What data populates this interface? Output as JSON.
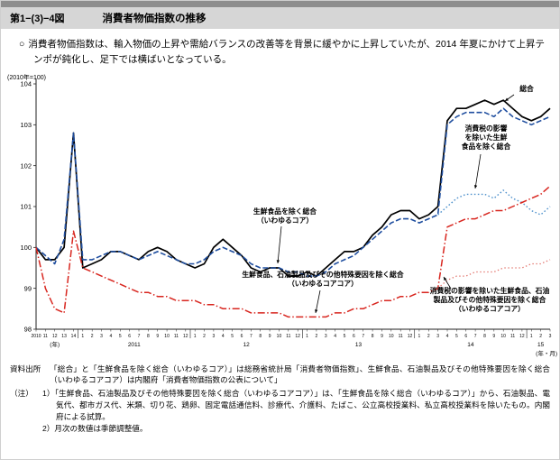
{
  "page": {
    "header": {
      "fig_number": "第1−(3)−4図",
      "title": "消費者物価指数の推移"
    },
    "lead": {
      "bullet": "○",
      "text": "消費者物価指数は、輸入物価の上昇や需給バランスの改善等を背景に緩やかに上昇していたが、2014 年夏にかけて上昇テンポが鈍化し、足下では横ばいとなっている。"
    },
    "footer": {
      "source_label": "資料出所",
      "source_text": "「総合」と「生鮮食品を除く総合（いわゆるコア）」は総務省統計局「消費者物価指数」、生鮮食品、石油製品及びその他特殊要因を除く総合（いわゆるコアコア）は内閣府「消費者物価指数の公表について」",
      "notes_label": "（注）",
      "notes": [
        "1）「生鮮食品、石油製品及びその他特殊要因を除く総合（いわゆるコアコア）」は、「生鮮食品を除く総合（いわゆるコア）」から、石油製品、電気代、都市ガス代、米類、切り花、鶏卵、固定電話通信料、診療代、介護料、たばこ、公立高校授業料、私立高校授業料を除いたもの。内閣府による試算。",
        "2）月次の数値は季節調整値。"
      ]
    }
  },
  "chart_data": {
    "type": "line",
    "title": "消費者物価指数の推移",
    "unit_label": "(2010年=100)",
    "y_axis": {
      "min": 98,
      "max": 104,
      "ticks": [
        98,
        99,
        100,
        101,
        102,
        103,
        104
      ]
    },
    "x_axis": {
      "annual_labels": [
        "2010",
        "11",
        "12",
        "13",
        "14"
      ],
      "annual_caption": "(年)",
      "monthly_years": [
        {
          "label": "2011",
          "months": 12
        },
        {
          "label": "12",
          "months": 12
        },
        {
          "label": "13",
          "months": 12
        },
        {
          "label": "14",
          "months": 12
        },
        {
          "label": "15",
          "months": 3
        }
      ],
      "caption": "(年・月)"
    },
    "series": [
      {
        "name": "総合",
        "color": "#000000",
        "dash": "",
        "width": 1.7,
        "annual": [
          100.0,
          99.7,
          99.7,
          100.0,
          102.8
        ],
        "monthly": [
          99.5,
          99.6,
          99.7,
          99.9,
          99.9,
          99.8,
          99.7,
          99.9,
          100.0,
          99.9,
          99.7,
          99.6,
          99.5,
          99.6,
          100.0,
          100.2,
          100.0,
          99.8,
          99.5,
          99.4,
          99.5,
          99.5,
          99.3,
          99.3,
          99.4,
          99.3,
          99.5,
          99.7,
          99.9,
          99.9,
          100.0,
          100.3,
          100.5,
          100.8,
          100.9,
          100.9,
          100.7,
          100.8,
          101.0,
          103.1,
          103.4,
          103.4,
          103.5,
          103.6,
          103.5,
          103.6,
          103.4,
          103.2,
          103.1,
          103.2,
          103.4
        ]
      },
      {
        "name": "生鮮食品を除く総合（いわゆるコア）",
        "color": "#1f4e9f",
        "dash": "6 2.5",
        "width": 1.6,
        "annual": [
          100.0,
          99.8,
          99.6,
          100.2,
          102.8
        ],
        "monthly": [
          99.7,
          99.7,
          99.8,
          99.9,
          99.9,
          99.8,
          99.7,
          99.8,
          99.9,
          99.8,
          99.7,
          99.6,
          99.6,
          99.7,
          99.9,
          100.0,
          99.9,
          99.8,
          99.6,
          99.5,
          99.5,
          99.5,
          99.4,
          99.4,
          99.3,
          99.3,
          99.4,
          99.6,
          99.7,
          99.8,
          100.0,
          100.2,
          100.4,
          100.6,
          100.7,
          100.7,
          100.6,
          100.7,
          100.8,
          103.0,
          103.2,
          103.3,
          103.3,
          103.3,
          103.2,
          103.4,
          103.2,
          103.1,
          103.0,
          103.1,
          103.2
        ]
      },
      {
        "name": "消費税の影響を除いた生鮮食品を除く総合",
        "color": "#4f91cc",
        "dash": "1.6 2.4",
        "width": 1.4,
        "annual": [
          null,
          null,
          null,
          null,
          null
        ],
        "monthly": [
          null,
          null,
          null,
          null,
          null,
          null,
          null,
          null,
          null,
          null,
          null,
          null,
          null,
          null,
          null,
          null,
          null,
          null,
          null,
          null,
          null,
          null,
          null,
          null,
          null,
          null,
          null,
          null,
          null,
          null,
          null,
          null,
          null,
          null,
          null,
          null,
          null,
          null,
          100.8,
          101.0,
          101.2,
          101.3,
          101.3,
          101.3,
          101.2,
          101.4,
          101.2,
          101.1,
          100.9,
          100.8,
          101.0
        ]
      },
      {
        "name": "生鮮食品、石油製品及びその他特殊要因を除く総合（いわゆるコアコア）",
        "color": "#d8261f",
        "dash": "8 2.5 1.5 2.5",
        "width": 1.5,
        "annual": [
          100.0,
          99.0,
          98.5,
          98.4,
          100.4
        ],
        "monthly": [
          99.5,
          99.4,
          99.3,
          99.2,
          99.1,
          99.0,
          98.9,
          98.9,
          98.8,
          98.8,
          98.7,
          98.7,
          98.7,
          98.6,
          98.6,
          98.5,
          98.5,
          98.5,
          98.4,
          98.4,
          98.4,
          98.4,
          98.3,
          98.3,
          98.3,
          98.3,
          98.3,
          98.4,
          98.4,
          98.5,
          98.5,
          98.6,
          98.7,
          98.7,
          98.8,
          98.8,
          98.9,
          98.9,
          99.0,
          100.5,
          100.6,
          100.7,
          100.7,
          100.8,
          100.9,
          100.9,
          101.0,
          101.1,
          101.2,
          101.3,
          101.5
        ]
      },
      {
        "name": "消費税の影響を除いた生鮮食品、石油製品及びその他特殊要因を除く総合（いわゆるコアコア）",
        "color": "#e2736b",
        "dash": "1.4 2.6",
        "width": 1.3,
        "annual": [
          null,
          null,
          null,
          null,
          null
        ],
        "monthly": [
          null,
          null,
          null,
          null,
          null,
          null,
          null,
          null,
          null,
          null,
          null,
          null,
          null,
          null,
          null,
          null,
          null,
          null,
          null,
          null,
          null,
          null,
          null,
          null,
          null,
          null,
          null,
          null,
          null,
          null,
          null,
          null,
          null,
          null,
          null,
          null,
          null,
          null,
          99.0,
          99.2,
          99.3,
          99.3,
          99.4,
          99.4,
          99.4,
          99.5,
          99.5,
          99.5,
          99.6,
          99.6,
          99.7
        ]
      }
    ],
    "annotations": [
      {
        "lines": [
          "総合"
        ],
        "x": 578,
        "y": 22,
        "anchor": "middle",
        "arrow": [
          564,
          26,
          554,
          33
        ]
      },
      {
        "lines": [
          "消費税の影響",
          "を除いた生鮮",
          "食品を除く総合"
        ],
        "x": 533,
        "y": 66,
        "anchor": "middle",
        "arrow": [
          527,
          92,
          521,
          130
        ]
      },
      {
        "lines": [
          "生鮮食品を除く総合",
          "（いわゆるコア）"
        ],
        "x": 310,
        "y": 158,
        "anchor": "middle",
        "arrow": [
          306,
          172,
          302,
          213
        ]
      },
      {
        "lines": [
          "生鮮食品、石油製品及びその他特殊要因を除く総合",
          "（いわゆるコアコア）"
        ],
        "x": 352,
        "y": 228,
        "anchor": "middle",
        "arrow": [
          349,
          243,
          344,
          268
        ]
      },
      {
        "lines": [
          "消費税の影響を除いた生鮮食品、石油",
          "製品及びその他特殊要因を除く総合",
          "（いわゆるコアコア）"
        ],
        "x": 537,
        "y": 246,
        "anchor": "middle",
        "arrow": [
          494,
          241,
          486,
          228
        ]
      }
    ]
  }
}
